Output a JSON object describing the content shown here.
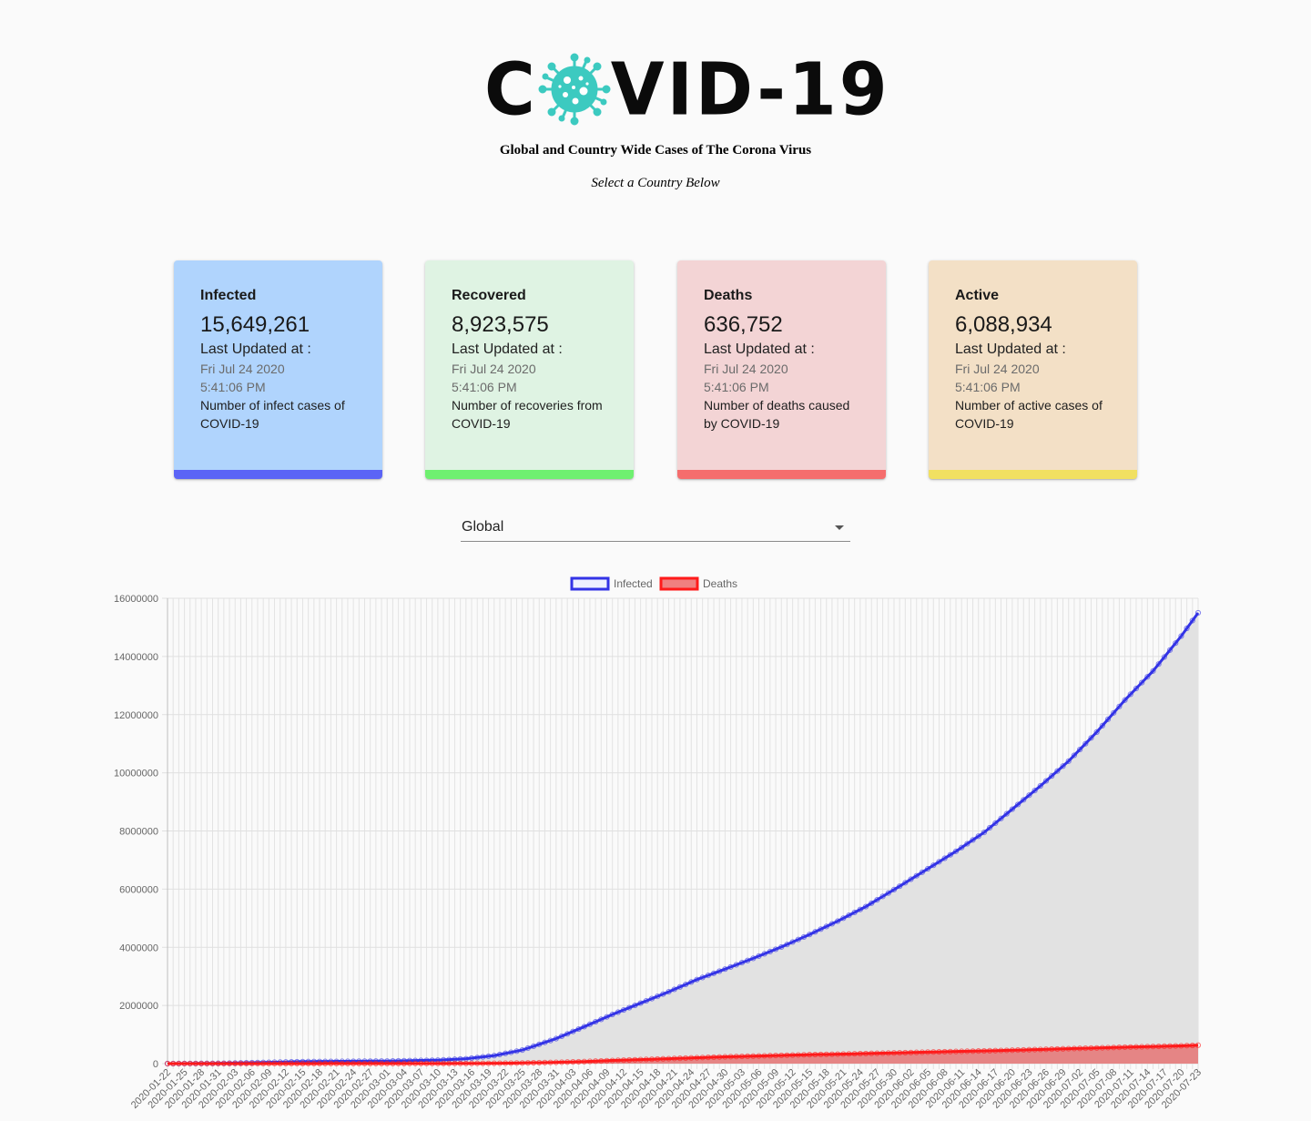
{
  "header": {
    "logo_left": "C",
    "logo_right": "VID-19",
    "subtitle": "Global and Country Wide Cases of The Corona Virus",
    "prompt": "Select a Country Below"
  },
  "colors": {
    "infected_card": "#b0d4fd",
    "infected_bar": "#5b64f6",
    "recovered_card": "#dff3e3",
    "recovered_bar": "#6ff070",
    "deaths_card": "#f3d4d5",
    "deaths_bar": "#f56d6d",
    "active_card": "#f3e0c6",
    "active_bar": "#f1e061",
    "virus": "#3ccac0"
  },
  "cards": [
    {
      "title": "Infected",
      "value": "15,649,261",
      "updated_label": "Last Updated at :",
      "date": "Fri Jul 24 2020",
      "time": "5:41:06 PM",
      "description": "Number of infect cases of COVID-19"
    },
    {
      "title": "Recovered",
      "value": "8,923,575",
      "updated_label": "Last Updated at :",
      "date": "Fri Jul 24 2020",
      "time": "5:41:06 PM",
      "description": "Number of recoveries from COVID-19"
    },
    {
      "title": "Deaths",
      "value": "636,752",
      "updated_label": "Last Updated at :",
      "date": "Fri Jul 24 2020",
      "time": "5:41:06 PM",
      "description": "Number of deaths caused by COVID-19"
    },
    {
      "title": "Active",
      "value": "6,088,934",
      "updated_label": "Last Updated at :",
      "date": "Fri Jul 24 2020",
      "time": "5:41:06 PM",
      "description": "Number of active cases of COVID-19"
    }
  ],
  "selector": {
    "value": "Global"
  },
  "chart_data": {
    "type": "area",
    "x_start": "2020-01-22",
    "x_end": "2020-07-23",
    "x_tick_labels": [
      "2020-01-22",
      "2020-01-25",
      "2020-01-28",
      "2020-01-31",
      "2020-02-03",
      "2020-02-06",
      "2020-02-09",
      "2020-02-12",
      "2020-02-15",
      "2020-02-18",
      "2020-02-21",
      "2020-02-24",
      "2020-02-27",
      "2020-03-01",
      "2020-03-04",
      "2020-03-07",
      "2020-03-10",
      "2020-03-13",
      "2020-03-16",
      "2020-03-19",
      "2020-03-22",
      "2020-03-25",
      "2020-03-28",
      "2020-03-31",
      "2020-04-03",
      "2020-04-06",
      "2020-04-09",
      "2020-04-12",
      "2020-04-15",
      "2020-04-18",
      "2020-04-21",
      "2020-04-24",
      "2020-04-27",
      "2020-04-30",
      "2020-05-03",
      "2020-05-06",
      "2020-05-09",
      "2020-05-12",
      "2020-05-15",
      "2020-05-18",
      "2020-05-21",
      "2020-05-24",
      "2020-05-27",
      "2020-05-30",
      "2020-06-02",
      "2020-06-05",
      "2020-06-08",
      "2020-06-11",
      "2020-06-14",
      "2020-06-17",
      "2020-06-20",
      "2020-06-23",
      "2020-06-26",
      "2020-06-29",
      "2020-07-02",
      "2020-07-05",
      "2020-07-08",
      "2020-07-11",
      "2020-07-14",
      "2020-07-17",
      "2020-07-20",
      "2020-07-23"
    ],
    "y_tick_labels": [
      "0",
      "2000000",
      "4000000",
      "6000000",
      "8000000",
      "10000000",
      "12000000",
      "14000000",
      "16000000"
    ],
    "ylim": [
      0,
      16000000
    ],
    "grid": true,
    "legend_position": "top",
    "series": [
      {
        "name": "Infected",
        "color": "#3333e6",
        "fill": "#e2e2e2",
        "values": [
          [
            "2020-01-22",
            555
          ],
          [
            "2020-02-01",
            12000
          ],
          [
            "2020-02-15",
            69000
          ],
          [
            "2020-03-01",
            88000
          ],
          [
            "2020-03-10",
            119000
          ],
          [
            "2020-03-15",
            167000
          ],
          [
            "2020-03-20",
            275000
          ],
          [
            "2020-03-25",
            467000
          ],
          [
            "2020-03-31",
            860000
          ],
          [
            "2020-04-05",
            1270000
          ],
          [
            "2020-04-10",
            1690000
          ],
          [
            "2020-04-15",
            2080000
          ],
          [
            "2020-04-20",
            2470000
          ],
          [
            "2020-04-25",
            2890000
          ],
          [
            "2020-04-30",
            3250000
          ],
          [
            "2020-05-05",
            3620000
          ],
          [
            "2020-05-10",
            4010000
          ],
          [
            "2020-05-15",
            4440000
          ],
          [
            "2020-05-20",
            4900000
          ],
          [
            "2020-05-25",
            5400000
          ],
          [
            "2020-05-31",
            6100000
          ],
          [
            "2020-06-05",
            6700000
          ],
          [
            "2020-06-10",
            7300000
          ],
          [
            "2020-06-15",
            7950000
          ],
          [
            "2020-06-20",
            8750000
          ],
          [
            "2020-06-25",
            9550000
          ],
          [
            "2020-06-30",
            10400000
          ],
          [
            "2020-07-05",
            11400000
          ],
          [
            "2020-07-10",
            12500000
          ],
          [
            "2020-07-15",
            13500000
          ],
          [
            "2020-07-20",
            14700000
          ],
          [
            "2020-07-23",
            15500000
          ]
        ]
      },
      {
        "name": "Deaths",
        "color": "#ff1a1a",
        "fill": "#e58585",
        "values": [
          [
            "2020-01-22",
            17
          ],
          [
            "2020-02-15",
            1700
          ],
          [
            "2020-03-01",
            3000
          ],
          [
            "2020-03-15",
            6500
          ],
          [
            "2020-03-20",
            11000
          ],
          [
            "2020-03-25",
            22000
          ],
          [
            "2020-03-31",
            44000
          ],
          [
            "2020-04-05",
            70000
          ],
          [
            "2020-04-10",
            108000
          ],
          [
            "2020-04-15",
            137000
          ],
          [
            "2020-04-20",
            170000
          ],
          [
            "2020-04-25",
            203000
          ],
          [
            "2020-04-30",
            234000
          ],
          [
            "2020-05-05",
            258000
          ],
          [
            "2020-05-10",
            283000
          ],
          [
            "2020-05-15",
            308000
          ],
          [
            "2020-05-20",
            326000
          ],
          [
            "2020-05-25",
            347000
          ],
          [
            "2020-05-31",
            372000
          ],
          [
            "2020-06-05",
            396000
          ],
          [
            "2020-06-10",
            418000
          ],
          [
            "2020-06-15",
            437000
          ],
          [
            "2020-06-20",
            461000
          ],
          [
            "2020-06-25",
            487000
          ],
          [
            "2020-06-30",
            514000
          ],
          [
            "2020-07-05",
            539000
          ],
          [
            "2020-07-10",
            565000
          ],
          [
            "2020-07-15",
            588000
          ],
          [
            "2020-07-20",
            612000
          ],
          [
            "2020-07-23",
            633000
          ]
        ]
      }
    ]
  }
}
